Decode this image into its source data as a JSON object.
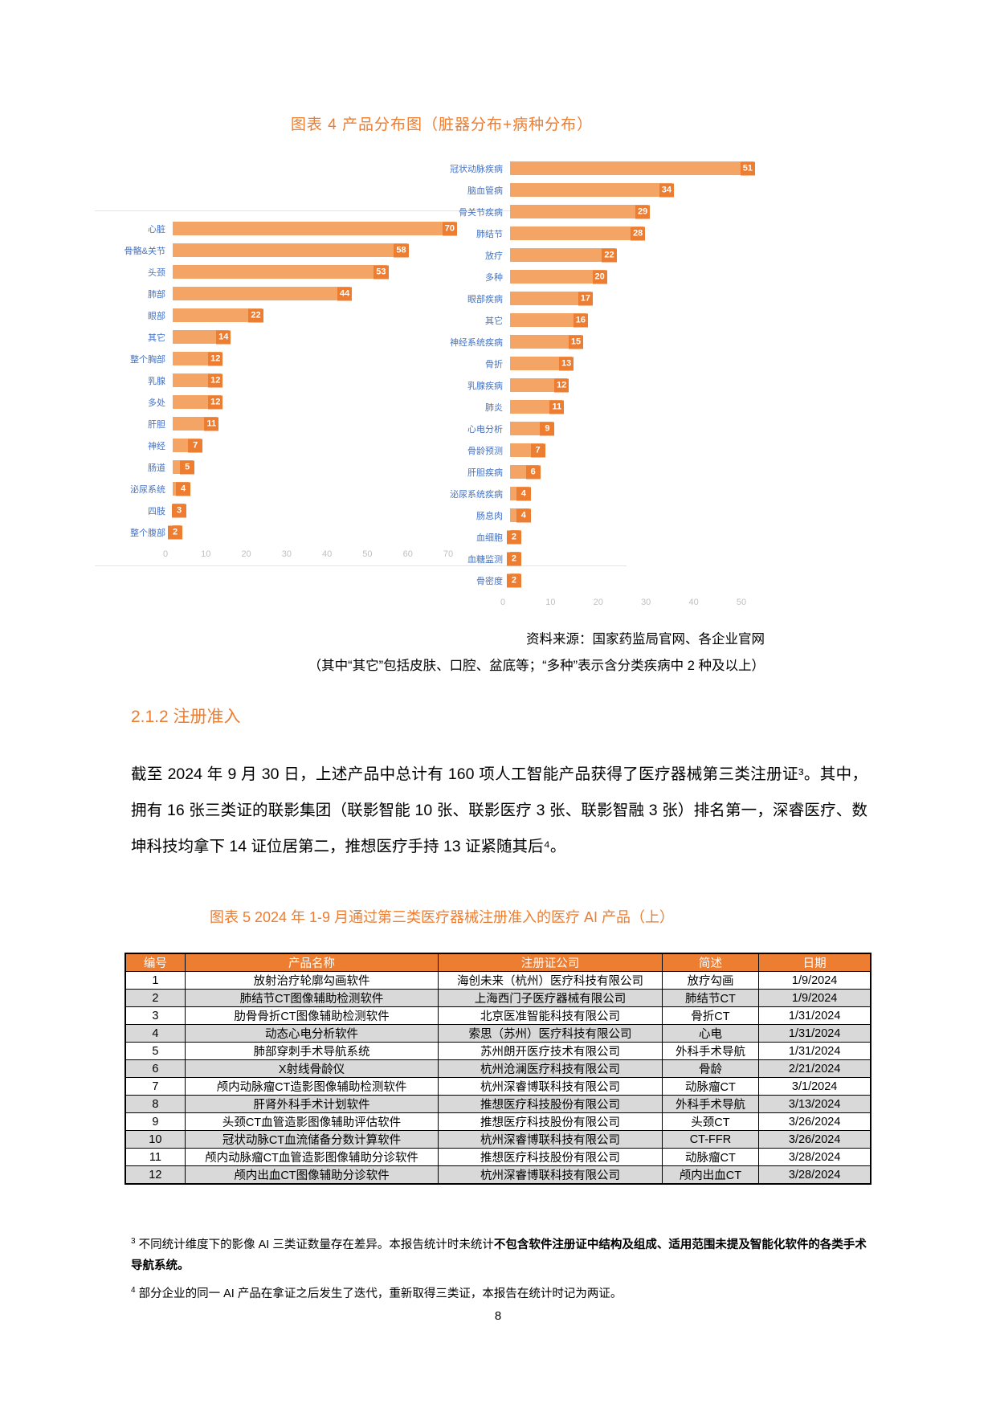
{
  "colors": {
    "accent_orange": "#ED7D31",
    "bar_fill": "#F4A566",
    "value_box": "#ED7D31",
    "label_blue": "#4472C4",
    "axis_gray": "#BFBFBF",
    "row_alt_gray": "#D9D9D9"
  },
  "figure4": {
    "title": "图表 4 产品分布图（脏器分布+病种分布）",
    "source_line1": "资料来源：国家药监局官网、各企业官网",
    "source_line2": "（其中“其它”包括皮肤、口腔、盆底等；“多种”表示含分类疾病中 2 种及以上）"
  },
  "chart_data": [
    {
      "type": "bar",
      "orientation": "horizontal",
      "name": "脏器分布",
      "categories": [
        "心脏",
        "骨骼&关节",
        "头颈",
        "肺部",
        "眼部",
        "其它",
        "整个胸部",
        "乳腺",
        "多处",
        "肝胆",
        "神经",
        "肠道",
        "泌尿系统",
        "四肢",
        "整个腹部"
      ],
      "values": [
        70,
        58,
        53,
        44,
        22,
        14,
        12,
        12,
        12,
        11,
        7,
        5,
        4,
        3,
        2
      ],
      "xlim": [
        0,
        70
      ],
      "ticks": [
        0,
        10,
        20,
        30,
        40,
        50,
        60,
        70
      ],
      "grid": false,
      "legend": "none"
    },
    {
      "type": "bar",
      "orientation": "horizontal",
      "name": "病种分布",
      "categories": [
        "冠状动脉疾病",
        "脑血管病",
        "骨关节疾病",
        "肺结节",
        "放疗",
        "多种",
        "眼部疾病",
        "其它",
        "神经系统疾病",
        "骨折",
        "乳腺疾病",
        "肺炎",
        "心电分析",
        "骨龄预测",
        "肝胆疾病",
        "泌尿系统疾病",
        "肠息肉",
        "血细胞",
        "血糖监测",
        "骨密度"
      ],
      "values": [
        51,
        34,
        29,
        28,
        22,
        20,
        17,
        16,
        15,
        13,
        12,
        11,
        9,
        7,
        6,
        4,
        4,
        2,
        2,
        2
      ],
      "xlim": [
        0,
        50
      ],
      "ticks": [
        0,
        10,
        20,
        30,
        40,
        50
      ],
      "grid": false,
      "legend": "none"
    }
  ],
  "section": {
    "heading": "2.1.2 注册准入",
    "paragraph": "截至 2024 年 9 月 30 日，上述产品中总计有 160 项人工智能产品获得了医疗器械第三类注册证³。其中，拥有 16 张三类证的联影集团（联影智能 10 张、联影医疗 3 张、联影智融 3 张）排名第一，深睿医疗、数坤科技均拿下 14 证位居第二，推想医疗手持 13 证紧随其后⁴。"
  },
  "figure5": {
    "title": "图表 5 2024 年 1-9 月通过第三类医疗器械注册准入的医疗 AI 产品（上）"
  },
  "table": {
    "headers": [
      "编号",
      "产品名称",
      "注册证公司",
      "简述",
      "日期"
    ],
    "rows": [
      [
        "1",
        "放射治疗轮廓勾画软件",
        "海创未来（杭州）医疗科技有限公司",
        "放疗勾画",
        "1/9/2024"
      ],
      [
        "2",
        "肺结节CT图像辅助检测软件",
        "上海西门子医疗器械有限公司",
        "肺结节CT",
        "1/9/2024"
      ],
      [
        "3",
        "肋骨骨折CT图像辅助检测软件",
        "北京医准智能科技有限公司",
        "骨折CT",
        "1/31/2024"
      ],
      [
        "4",
        "动态心电分析软件",
        "索思（苏州）医疗科技有限公司",
        "心电",
        "1/31/2024"
      ],
      [
        "5",
        "肺部穿刺手术导航系统",
        "苏州朗开医疗技术有限公司",
        "外科手术导航",
        "1/31/2024"
      ],
      [
        "6",
        "X射线骨龄仪",
        "杭州沧澜医疗科技有限公司",
        "骨龄",
        "2/21/2024"
      ],
      [
        "7",
        "颅内动脉瘤CT造影图像辅助检测软件",
        "杭州深睿博联科技有限公司",
        "动脉瘤CT",
        "3/1/2024"
      ],
      [
        "8",
        "肝肾外科手术计划软件",
        "推想医疗科技股份有限公司",
        "外科手术导航",
        "3/13/2024"
      ],
      [
        "9",
        "头颈CT血管造影图像辅助评估软件",
        "推想医疗科技股份有限公司",
        "头颈CT",
        "3/26/2024"
      ],
      [
        "10",
        "冠状动脉CT血流储备分数计算软件",
        "杭州深睿博联科技有限公司",
        "CT-FFR",
        "3/26/2024"
      ],
      [
        "11",
        "颅内动脉瘤CT血管造影图像辅助分诊软件",
        "推想医疗科技股份有限公司",
        "动脉瘤CT",
        "3/28/2024"
      ],
      [
        "12",
        "颅内出血CT图像辅助分诊软件",
        "杭州深睿博联科技有限公司",
        "颅内出血CT",
        "3/28/2024"
      ]
    ]
  },
  "footnotes": [
    {
      "marker": "3",
      "pre": "不同统计维度下的影像 AI 三类证数量存在差异。本报告统计时未统计",
      "bold": "不包含软件注册证中结构及组成、适用范围未提及智能化软件的各类手术导航系统。"
    },
    {
      "marker": "4",
      "pre": "部分企业的同一 AI 产品在拿证之后发生了迭代，重新取得三类证，本报告在统计时记为两证。",
      "bold": ""
    }
  ],
  "page": {
    "number": "8"
  }
}
